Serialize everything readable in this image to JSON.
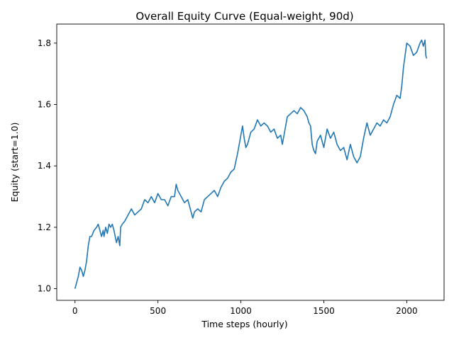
{
  "chart_data": {
    "type": "line",
    "title": "Overall Equity Curve (Equal-weight, 90d)",
    "xlabel": "Time steps (hourly)",
    "ylabel": "Equity (start=1.0)",
    "xlim": [
      -110,
      2225
    ],
    "ylim": [
      0.962,
      1.862
    ],
    "xticks": [
      0,
      500,
      1000,
      1500,
      2000
    ],
    "yticks": [
      1.0,
      1.2,
      1.4,
      1.6,
      1.8
    ],
    "grid": false,
    "series": [
      {
        "color": "#1f77b4",
        "x": [
          0,
          20,
          30,
          40,
          50,
          60,
          70,
          80,
          90,
          100,
          115,
          130,
          140,
          150,
          160,
          170,
          175,
          185,
          195,
          205,
          215,
          225,
          235,
          250,
          260,
          270,
          275,
          285,
          300,
          320,
          340,
          360,
          380,
          400,
          420,
          440,
          460,
          480,
          500,
          520,
          540,
          560,
          580,
          600,
          610,
          620,
          640,
          660,
          680,
          700,
          710,
          720,
          740,
          760,
          780,
          800,
          820,
          840,
          860,
          880,
          900,
          920,
          940,
          960,
          980,
          1000,
          1010,
          1020,
          1030,
          1040,
          1060,
          1080,
          1100,
          1120,
          1140,
          1160,
          1180,
          1200,
          1220,
          1240,
          1250,
          1260,
          1280,
          1300,
          1320,
          1340,
          1360,
          1380,
          1400,
          1410,
          1420,
          1430,
          1440,
          1450,
          1460,
          1480,
          1500,
          1520,
          1540,
          1560,
          1580,
          1600,
          1620,
          1640,
          1660,
          1680,
          1700,
          1720,
          1740,
          1760,
          1780,
          1800,
          1820,
          1840,
          1860,
          1880,
          1900,
          1920,
          1940,
          1960,
          1970,
          1980,
          1990,
          2000,
          2020,
          2040,
          2060,
          2080,
          2090,
          2100,
          2110,
          2115,
          2120
        ],
        "y": [
          1.0,
          1.04,
          1.07,
          1.06,
          1.04,
          1.06,
          1.09,
          1.14,
          1.17,
          1.17,
          1.19,
          1.2,
          1.21,
          1.19,
          1.17,
          1.19,
          1.17,
          1.2,
          1.18,
          1.21,
          1.2,
          1.21,
          1.19,
          1.15,
          1.17,
          1.14,
          1.2,
          1.21,
          1.22,
          1.24,
          1.26,
          1.24,
          1.25,
          1.26,
          1.29,
          1.28,
          1.3,
          1.28,
          1.31,
          1.29,
          1.29,
          1.27,
          1.3,
          1.3,
          1.34,
          1.32,
          1.3,
          1.28,
          1.29,
          1.25,
          1.23,
          1.25,
          1.26,
          1.25,
          1.29,
          1.3,
          1.31,
          1.32,
          1.3,
          1.33,
          1.35,
          1.36,
          1.38,
          1.39,
          1.44,
          1.5,
          1.53,
          1.49,
          1.46,
          1.47,
          1.51,
          1.52,
          1.55,
          1.53,
          1.54,
          1.53,
          1.51,
          1.52,
          1.49,
          1.5,
          1.47,
          1.5,
          1.56,
          1.57,
          1.58,
          1.57,
          1.59,
          1.58,
          1.56,
          1.54,
          1.53,
          1.47,
          1.45,
          1.44,
          1.48,
          1.5,
          1.46,
          1.52,
          1.49,
          1.51,
          1.47,
          1.45,
          1.46,
          1.42,
          1.47,
          1.43,
          1.41,
          1.43,
          1.49,
          1.54,
          1.5,
          1.52,
          1.54,
          1.53,
          1.55,
          1.54,
          1.56,
          1.6,
          1.63,
          1.62,
          1.66,
          1.72,
          1.76,
          1.8,
          1.79,
          1.76,
          1.77,
          1.8,
          1.81,
          1.79,
          1.81,
          1.76,
          1.75
        ]
      }
    ]
  }
}
